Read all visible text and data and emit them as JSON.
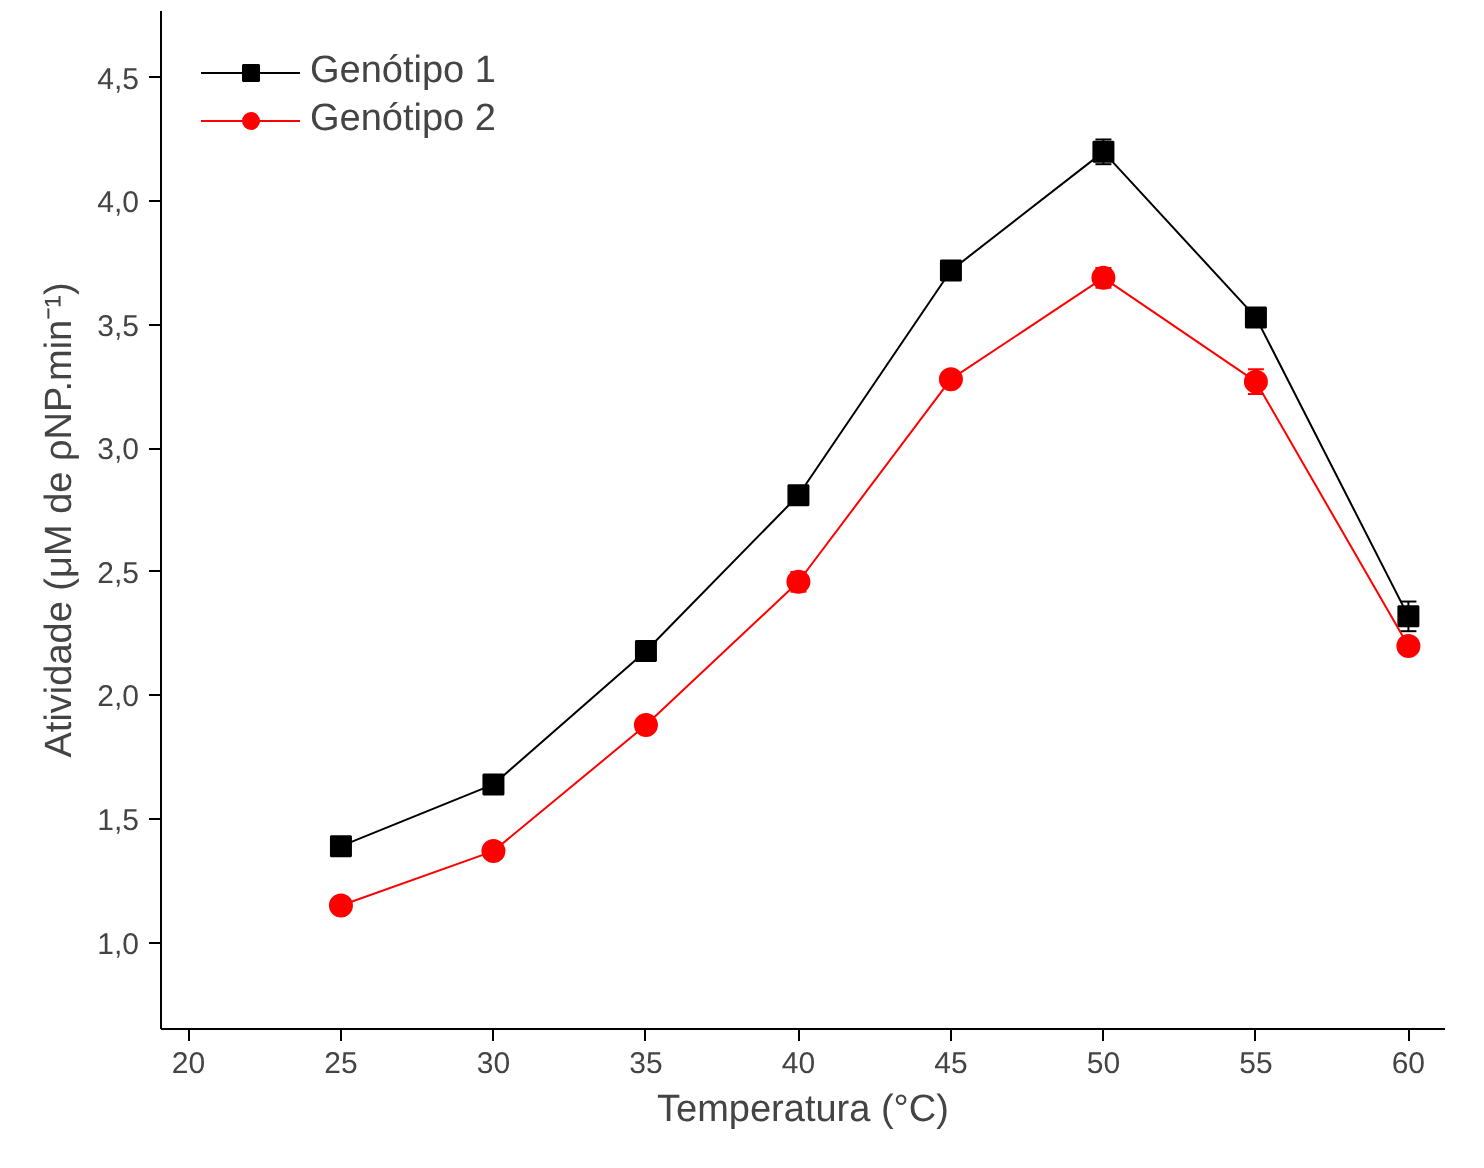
{
  "chart_data": {
    "type": "line",
    "xlabel": "Temperatura (°C)",
    "ylabel": "Atividade (μM de ρNP.min⁻¹)",
    "x": [
      25,
      30,
      35,
      40,
      45,
      50,
      55,
      60
    ],
    "series": [
      {
        "name": "Genótipo 1",
        "color": "#000000",
        "marker": "square",
        "values": [
          1.39,
          1.64,
          2.18,
          2.81,
          3.72,
          4.2,
          3.53,
          2.32
        ],
        "errors": [
          0.03,
          0.03,
          0.03,
          0.03,
          0.03,
          0.05,
          0.03,
          0.06
        ]
      },
      {
        "name": "Genótipo 2",
        "color": "#ff0000",
        "marker": "circle",
        "values": [
          1.15,
          1.37,
          1.88,
          2.46,
          3.28,
          3.69,
          3.27,
          2.2
        ],
        "errors": [
          0.02,
          0.03,
          0.02,
          0.04,
          0.02,
          0.04,
          0.05,
          0.02
        ]
      }
    ],
    "xlim": [
      19.1,
      61.2
    ],
    "ylim": [
      0.65,
      4.77
    ],
    "xticks": [
      20,
      25,
      30,
      35,
      40,
      45,
      50,
      55,
      60
    ],
    "yticks": [
      {
        "value": 1.0,
        "label": "1,0"
      },
      {
        "value": 1.5,
        "label": "1,5"
      },
      {
        "value": 2.0,
        "label": "2,0"
      },
      {
        "value": 2.5,
        "label": "2,5"
      },
      {
        "value": 3.0,
        "label": "3,0"
      },
      {
        "value": 3.5,
        "label": "3,5"
      },
      {
        "value": 4.0,
        "label": "4,0"
      },
      {
        "value": 4.5,
        "label": "4,5"
      }
    ],
    "legend": "top left",
    "grid": false,
    "line_style": "solid"
  }
}
